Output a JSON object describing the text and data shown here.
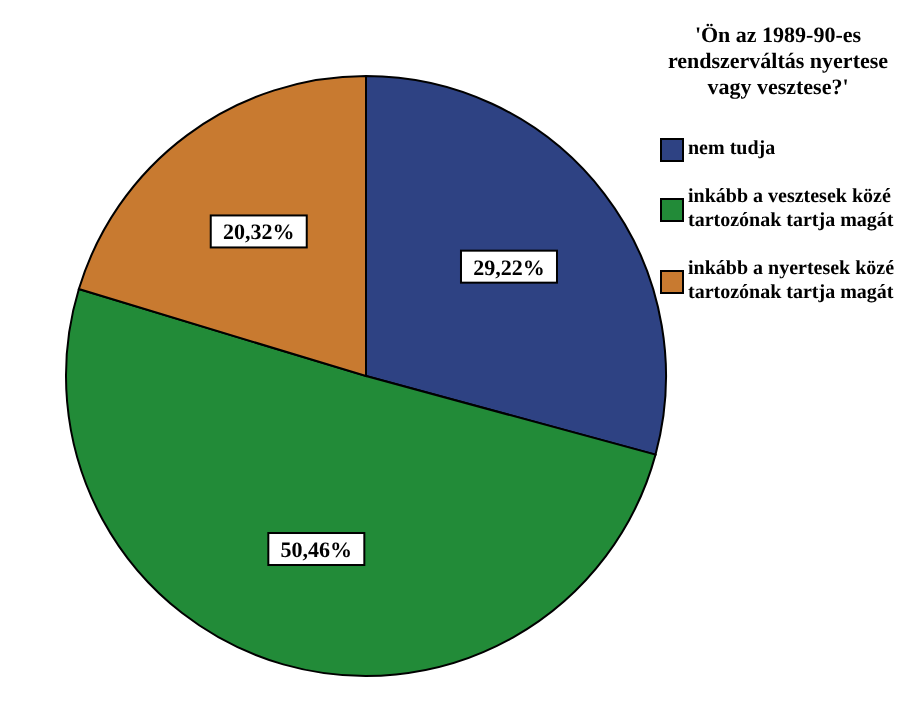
{
  "chart_data": {
    "type": "pie",
    "title": "'Ön az 1989-90-es rendszerváltás nyertese vagy vesztese?'",
    "categories": [
      "nem tudja",
      "inkább a vesztesek közé tartozónak tartja magát",
      "inkább a nyertesek közé tartozónak tartja magát"
    ],
    "values": [
      29.22,
      50.46,
      20.32
    ],
    "colors": [
      "#2e4283",
      "#228b38",
      "#c87a30"
    ],
    "value_labels": [
      "29,22%",
      "50,46%",
      "20,32%"
    ],
    "legend": "right"
  }
}
